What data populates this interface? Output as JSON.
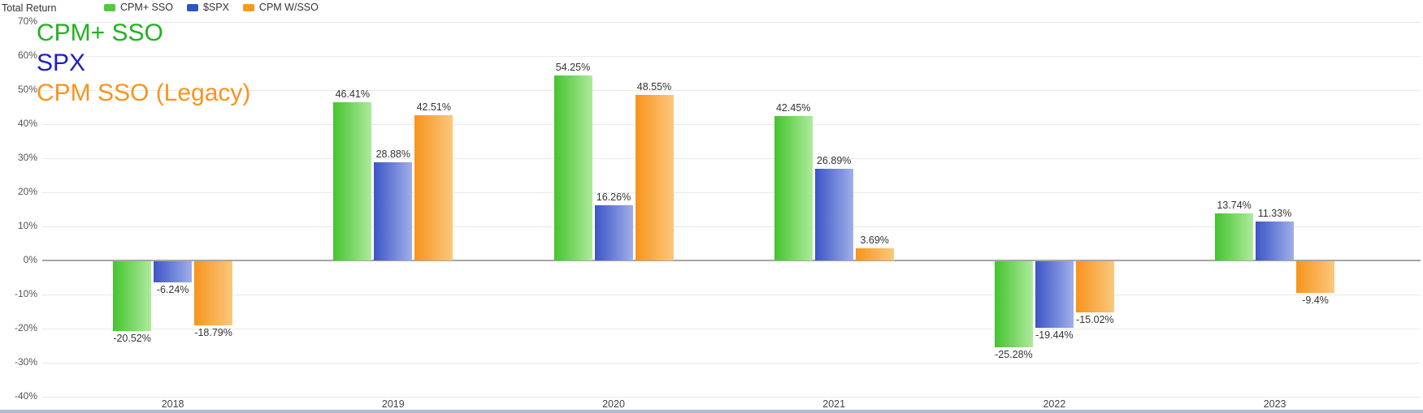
{
  "title": "Total Return",
  "legend": {
    "items": [
      {
        "label": "CPM+ SSO",
        "color": "#54c83e"
      },
      {
        "label": "$SPX",
        "color": "#2f53c3"
      },
      {
        "label": "CPM W/SSO",
        "color": "#f79b1e"
      }
    ]
  },
  "overlay": {
    "lines": [
      {
        "text": "CPM+ SSO",
        "color": "#21b221"
      },
      {
        "text": "SPX",
        "color": "#1f1fc1"
      },
      {
        "text": "CPM SSO (Legacy)",
        "color": "#f7941d"
      }
    ]
  },
  "chart_data": {
    "type": "bar",
    "title": "Total Return",
    "ylabel": "Total Return",
    "categories": [
      "2018",
      "2019",
      "2020",
      "2021",
      "2022",
      "2023"
    ],
    "series": [
      {
        "name": "CPM+ SSO",
        "values": [
          -20.52,
          46.41,
          54.25,
          42.45,
          -25.28,
          13.74
        ],
        "labels": [
          "-20.52%",
          "46.41%",
          "54.25%",
          "42.45%",
          "-25.28%",
          "13.74%"
        ],
        "color_dark": "#44c42e",
        "color_light": "#aeea9d"
      },
      {
        "name": "$SPX",
        "values": [
          -6.24,
          28.88,
          16.26,
          26.89,
          -19.44,
          11.33
        ],
        "labels": [
          "-6.24%",
          "28.88%",
          "16.26%",
          "26.89%",
          "-19.44%",
          "11.33%"
        ],
        "color_dark": "#3c55c6",
        "color_light": "#a0afe9"
      },
      {
        "name": "CPM W/SSO",
        "values": [
          -18.79,
          42.51,
          48.55,
          3.69,
          -15.02,
          -9.4
        ],
        "labels": [
          "-18.79%",
          "42.51%",
          "48.55%",
          "3.69%",
          "-15.02%",
          "-9.4%"
        ],
        "color_dark": "#f7941d",
        "color_light": "#fbc87d"
      }
    ],
    "yticks": [
      70,
      60,
      50,
      40,
      30,
      20,
      10,
      0,
      -10,
      -20,
      -30,
      -40
    ],
    "ytick_suffix": "%",
    "ylim": [
      -40,
      70
    ],
    "grid": true,
    "legend_position": "top"
  }
}
